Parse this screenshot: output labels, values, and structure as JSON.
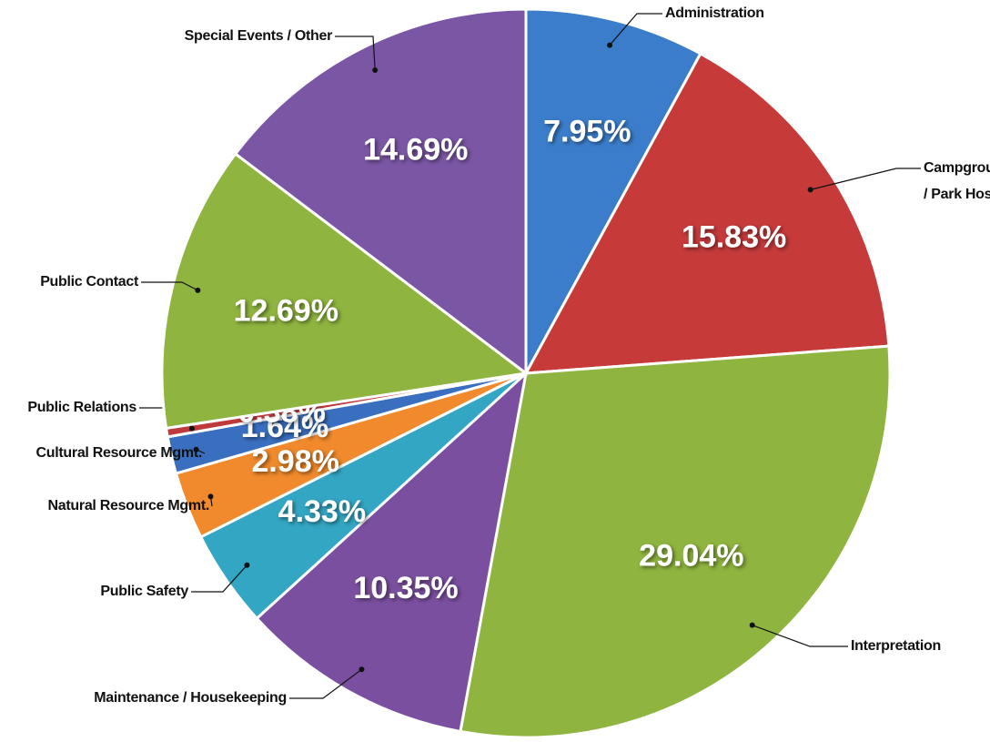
{
  "chart_data": {
    "type": "pie",
    "categories": [
      "Administration",
      "Campground / Park Host",
      "Interpretation",
      "Maintenance / Housekeeping",
      "Public Safety",
      "Natural Resource Mgmt.",
      "Cultural Resource Mgmt.",
      "Public Relations",
      "Public Contact",
      "Special Events / Other"
    ],
    "values": [
      7.95,
      15.83,
      29.04,
      10.35,
      4.33,
      2.98,
      1.64,
      0.38,
      12.69,
      14.69
    ],
    "value_labels": [
      "7.95%",
      "15.83%",
      "29.04%",
      "10.35%",
      "4.33%",
      "2.98%",
      "1.64%",
      "0.38%",
      "12.69%",
      "14.69%"
    ],
    "colors": [
      "#3b7dcb",
      "#c63a3a",
      "#8fb43f",
      "#7a4f9f",
      "#33a6c3",
      "#f08a2c",
      "#3a6fc0",
      "#c0393b",
      "#8fb43f",
      "#7b56a5"
    ]
  }
}
